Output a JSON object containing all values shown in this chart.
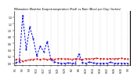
{
  "title": "Milwaukee Weather Evapotranspiration (Red) vs Rain (Blue) per Day (Inches)",
  "x_labels": [
    "5/1",
    "5/3",
    "5/5",
    "5/7",
    "5/9",
    "5/11",
    "5/13",
    "5/15",
    "5/17",
    "5/19",
    "5/21",
    "5/23",
    "5/25",
    "5/27",
    "5/29",
    "5/31",
    "6/2",
    "6/4",
    "6/6",
    "6/8",
    "6/10",
    "6/12",
    "6/14",
    "6/16",
    "6/18",
    "6/20",
    "6/22",
    "6/24",
    "6/26",
    "6/28",
    "6/30",
    "7/2",
    "7/4"
  ],
  "rain": [
    0.02,
    0.04,
    1.45,
    0.42,
    1.1,
    0.75,
    0.22,
    0.52,
    0.35,
    0.65,
    0.12,
    0.04,
    0.01,
    0.0,
    0.0,
    0.01,
    0.0,
    0.0,
    0.28,
    0.02,
    0.0,
    0.04,
    0.01,
    0.0,
    0.0,
    0.0,
    0.0,
    0.03,
    0.0,
    0.0,
    0.0,
    0.0,
    0.0
  ],
  "et": [
    0.12,
    0.11,
    0.06,
    0.09,
    0.1,
    0.12,
    0.13,
    0.12,
    0.13,
    0.11,
    0.13,
    0.12,
    0.14,
    0.14,
    0.13,
    0.13,
    0.12,
    0.14,
    0.13,
    0.12,
    0.14,
    0.13,
    0.14,
    0.15,
    0.14,
    0.14,
    0.13,
    0.14,
    0.13,
    0.14,
    0.15,
    0.14,
    0.13
  ],
  "rain_color": "#0000dd",
  "et_color": "#dd0000",
  "bg_color": "#ffffff",
  "ylim": [
    -0.05,
    1.6
  ],
  "yticks": [
    0.0,
    0.2,
    0.4,
    0.6,
    0.8,
    1.0,
    1.2,
    1.4
  ],
  "grid_color": "#888888",
  "title_fontsize": 2.5,
  "tick_fontsize": 2.2,
  "linewidth": 0.7,
  "markersize": 1.0
}
